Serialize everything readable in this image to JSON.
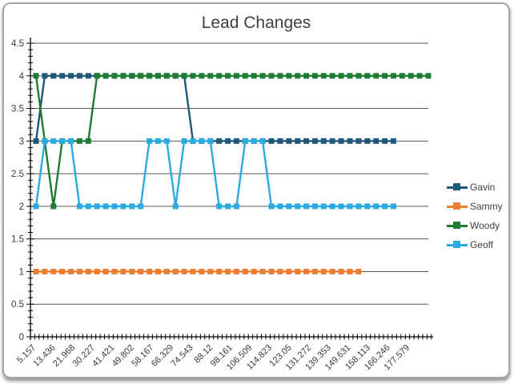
{
  "chart_data": {
    "type": "line",
    "title": "Lead Changes",
    "x_labels": [
      "5.157",
      "13.436",
      "21.968",
      "30.227",
      "41.421",
      "49.802",
      "58.167",
      "66.329",
      "74.543",
      "88.12",
      "98.161",
      "106.509",
      "114.823",
      "123.05",
      "131.272",
      "139.353",
      "149.631",
      "158.113",
      "166.246",
      "177.579"
    ],
    "y_tick_labels": [
      "4.5",
      "4",
      "3.5",
      "3",
      "2.5",
      "2",
      "1.5",
      "1",
      "0.5",
      "0"
    ],
    "ylim": [
      0,
      4.5
    ],
    "y_major_step": 0.5,
    "grid": true,
    "legend_position": "right",
    "series": [
      {
        "name": "Gavin",
        "color": "#1F587B",
        "values": [
          3,
          4,
          4,
          4,
          4,
          4,
          4,
          4,
          4,
          4,
          4,
          4,
          4,
          4,
          4,
          4,
          4,
          4,
          3,
          3,
          3,
          3,
          3,
          3,
          3,
          3,
          3,
          3,
          3,
          3,
          3,
          3,
          3,
          3,
          3,
          3,
          3,
          3,
          3,
          3,
          3,
          3,
          null,
          null,
          null,
          null
        ]
      },
      {
        "name": "Sammy",
        "color": "#ED7D31",
        "values": [
          1,
          1,
          1,
          1,
          1,
          1,
          1,
          1,
          1,
          1,
          1,
          1,
          1,
          1,
          1,
          1,
          1,
          1,
          1,
          1,
          1,
          1,
          1,
          1,
          1,
          1,
          1,
          1,
          1,
          1,
          1,
          1,
          1,
          1,
          1,
          1,
          1,
          1,
          null,
          null,
          null,
          null,
          null,
          null,
          null,
          null
        ]
      },
      {
        "name": "Woody",
        "color": "#1E7B34",
        "values": [
          4,
          3,
          2,
          3,
          3,
          3,
          3,
          4,
          4,
          4,
          4,
          4,
          4,
          4,
          4,
          4,
          4,
          4,
          4,
          4,
          4,
          4,
          4,
          4,
          4,
          4,
          4,
          4,
          4,
          4,
          4,
          4,
          4,
          4,
          4,
          4,
          4,
          4,
          4,
          4,
          4,
          4,
          4,
          4,
          4,
          4
        ]
      },
      {
        "name": "Geoff",
        "color": "#2BAAE2",
        "values": [
          2,
          3,
          3,
          3,
          3,
          2,
          2,
          2,
          2,
          2,
          2,
          2,
          2,
          3,
          3,
          3,
          2,
          3,
          3,
          3,
          3,
          2,
          2,
          2,
          3,
          3,
          3,
          2,
          2,
          2,
          2,
          2,
          2,
          2,
          2,
          2,
          2,
          2,
          2,
          2,
          2,
          2,
          null,
          null,
          null,
          null
        ]
      }
    ]
  }
}
